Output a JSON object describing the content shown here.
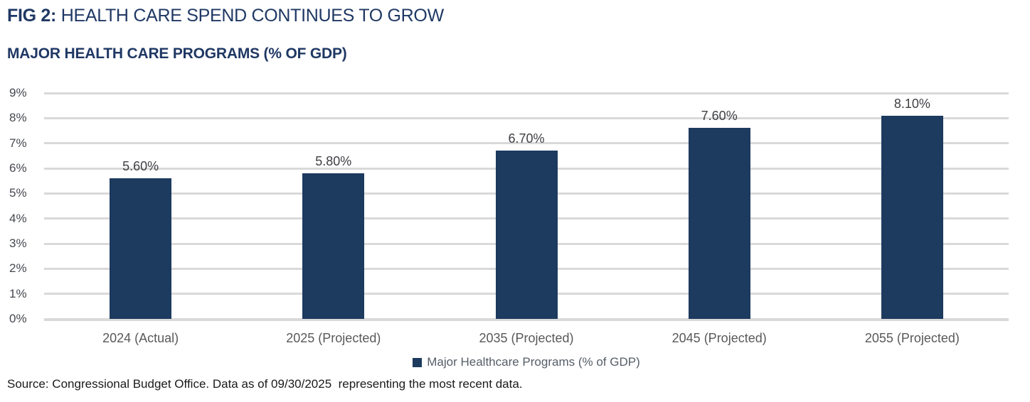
{
  "figure": {
    "title_prefix": "FIG 2:",
    "title_rest": " HEALTH CARE SPEND CONTINUES TO GROW",
    "subtitle": "MAJOR HEALTH CARE PROGRAMS (% OF GDP)",
    "source": "Source: Congressional Budget Office. Data as of 09/30/2025  representing the most recent data."
  },
  "legend": {
    "label": "Major Healthcare Programs (% of GDP)"
  },
  "colors": {
    "bar": "#1d3a5f",
    "title": "#1f3864",
    "gridline": "#d9d9d9",
    "axis_text": "#595959"
  },
  "chart_data": {
    "type": "bar",
    "title": "MAJOR HEALTH CARE PROGRAMS (% OF GDP)",
    "categories": [
      "2024 (Actual)",
      "2025 (Projected)",
      "2035 (Projected)",
      "2045 (Projected)",
      "2055 (Projected)"
    ],
    "values": [
      5.6,
      5.8,
      6.7,
      7.6,
      8.1
    ],
    "value_labels": [
      "5.60%",
      "5.80%",
      "6.70%",
      "7.60%",
      "8.10%"
    ],
    "xlabel": "",
    "ylabel": "",
    "ylim": [
      0,
      9
    ],
    "ytick_step": 1,
    "ytick_labels": [
      "0%",
      "1%",
      "2%",
      "3%",
      "4%",
      "5%",
      "6%",
      "7%",
      "8%",
      "9%"
    ],
    "grid": true,
    "legend_position": "bottom",
    "bar_color": "#1d3a5f"
  }
}
